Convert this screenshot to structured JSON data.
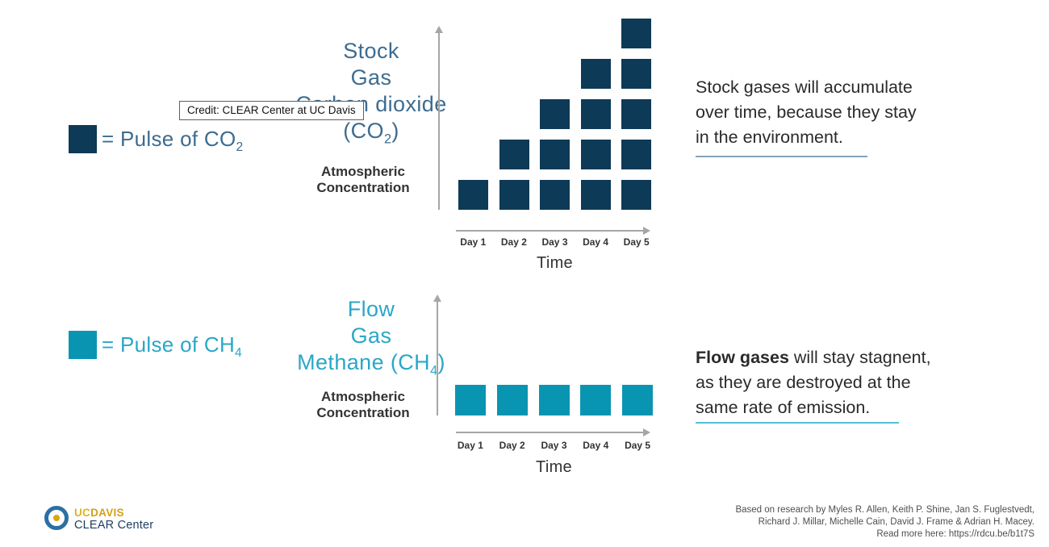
{
  "colors": {
    "stock_square": "#0d3a56",
    "flow_square": "#0995b2",
    "stock_text": "#3d6c90",
    "flow_text": "#2aa7c7",
    "stock_underline": "#84a3b9",
    "flow_underline": "#55c0da",
    "axis_gray": "#a6a6a6",
    "gold": "#d4a017",
    "logo_navy": "#1e3e63"
  },
  "tooltip": {
    "text": "Credit: CLEAR Center at UC Davis"
  },
  "legends": {
    "co2": {
      "text": "= Pulse of CO",
      "sub": "2"
    },
    "ch4": {
      "text": "= Pulse of CH",
      "sub": "4"
    }
  },
  "stock": {
    "title_line1": "Stock",
    "title_line2": "Gas",
    "title_line3": "Carbon dioxide",
    "title_line4_pre": "(CO",
    "title_line4_sub": "2",
    "title_line4_post": ")"
  },
  "flow": {
    "title_line1": "Flow",
    "title_line2": "Gas",
    "title_line3_pre": "Methane (CH",
    "title_line3_sub": "4",
    "title_line3_post": ")"
  },
  "paragraphs": {
    "stock": {
      "text": "Stock gases will accumulate\nover time, because they stay\nin the environment."
    },
    "flow": {
      "bold": "Flow gases",
      "rest": " will stay stagnent,\nas they are destroyed at the\nsame rate of emission."
    }
  },
  "chart_data": [
    {
      "type": "bar",
      "title": "Stock Gas Carbon dioxide (CO2)",
      "categories": [
        "Day 1",
        "Day 2",
        "Day 3",
        "Day 4",
        "Day 5"
      ],
      "values": [
        1,
        2,
        3,
        4,
        5
      ],
      "xlabel": "Time",
      "ylabel": "Atmospheric Concentration",
      "unit": "pulses of CO2 (one square = one pulse)",
      "ylim": [
        0,
        5
      ],
      "grid": false
    },
    {
      "type": "bar",
      "title": "Flow Gas Methane (CH4)",
      "categories": [
        "Day 1",
        "Day 2",
        "Day 3",
        "Day 4",
        "Day 5"
      ],
      "values": [
        1,
        1,
        1,
        1,
        1
      ],
      "xlabel": "Time",
      "ylabel": "Atmospheric Concentration",
      "unit": "pulses of CH4 (one square = one pulse)",
      "ylim": [
        0,
        5
      ],
      "grid": false
    }
  ],
  "footer": {
    "logo": {
      "uc": "UC",
      "davis": "DAVIS",
      "center": "CLEAR Center"
    },
    "citation": "Based on research by Myles R. Allen, Keith P. Shine, Jan S. Fuglestvedt,\nRichard J. Millar, Michelle Cain, David J. Frame & Adrian H. Macey.\nRead more here: https://rdcu.be/b1t7S"
  }
}
